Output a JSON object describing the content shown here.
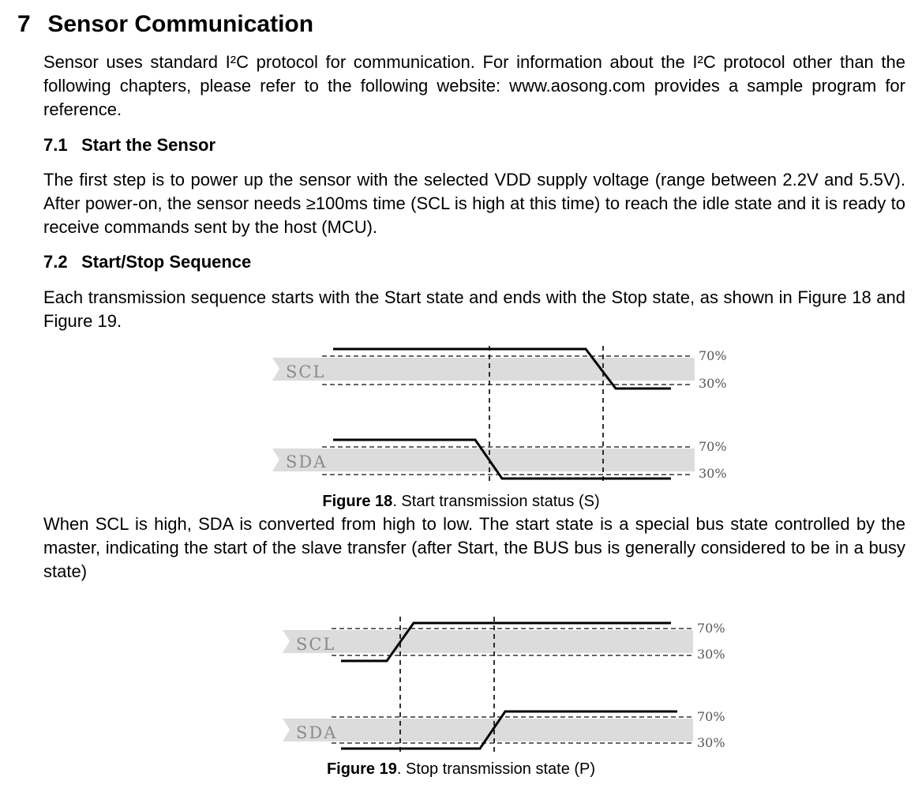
{
  "section": {
    "number": "7",
    "title": "Sensor Communication"
  },
  "intro": "Sensor uses standard I²C protocol for communication. For information about the I²C protocol other than the following chapters, please refer to the following website: www.aosong.com provides a sample program for reference.",
  "sub1": {
    "number": "7.1",
    "title": "Start the Sensor",
    "text": "The first step is to power up the sensor with the selected VDD supply voltage (range between 2.2V and 5.5V). After power-on, the sensor needs ≥100ms time (SCL is high at this time) to reach the idle state and it is ready to receive commands sent by the host (MCU)."
  },
  "sub2": {
    "number": "7.2",
    "title": "Start/Stop Sequence",
    "text": "Each transmission sequence starts with the Start state and ends with the Stop state, as shown in Figure 18 and Figure 19."
  },
  "figure18": {
    "scl_label": "SCL",
    "sda_label": "SDA",
    "high_threshold": "70%",
    "low_threshold": "30%",
    "caption_bold": "Figure 18",
    "caption_rest": ". Start transmission status (S)"
  },
  "after_fig18": "When SCL is high, SDA is converted from high to low. The start state is a special bus state controlled by the master, indicating the start of the slave transfer (after Start, the BUS bus is generally considered to be in a busy state)",
  "figure19": {
    "scl_label": "SCL",
    "sda_label": "SDA",
    "high_threshold": "70%",
    "low_threshold": "30%",
    "caption_bold": "Figure 19",
    "caption_rest": ". Stop transmission state (P)"
  }
}
